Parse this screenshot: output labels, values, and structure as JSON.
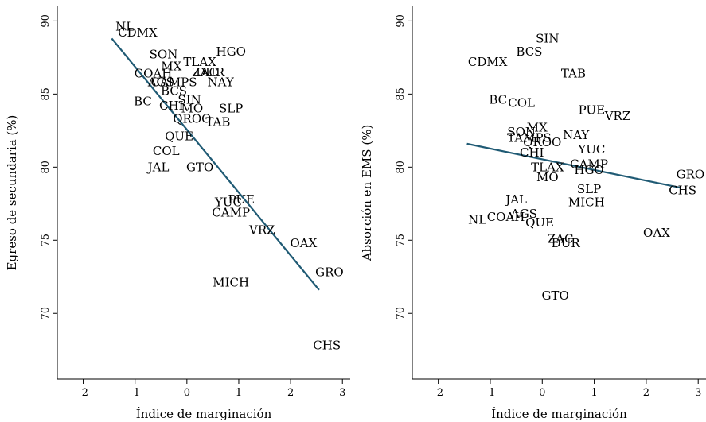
{
  "colors": {
    "fit_line": "#1f5a74",
    "text": "#000000",
    "axis": "#000000"
  },
  "chart_data": [
    {
      "type": "scatter",
      "xlabel": "Índice de marginación",
      "ylabel": "Egreso de secundaria (%)",
      "xlim": [
        -2.5,
        3.15
      ],
      "ylim": [
        65.5,
        91.0
      ],
      "xticks": [
        -2,
        -1,
        0,
        1,
        2,
        3
      ],
      "yticks": [
        70,
        75,
        80,
        85,
        90
      ],
      "fit": {
        "x": [
          -1.45,
          2.55
        ],
        "y": [
          88.8,
          71.6
        ]
      },
      "points": [
        {
          "label": "NL",
          "x": -1.2,
          "y": 89.6
        },
        {
          "label": "CDMX",
          "x": -0.95,
          "y": 89.2
        },
        {
          "label": "SON",
          "x": -0.45,
          "y": 87.7
        },
        {
          "label": "HGO",
          "x": 0.85,
          "y": 87.9
        },
        {
          "label": "MX",
          "x": -0.3,
          "y": 86.9
        },
        {
          "label": "TLAX",
          "x": 0.25,
          "y": 87.2
        },
        {
          "label": "ZAC",
          "x": 0.35,
          "y": 86.5
        },
        {
          "label": "DUR",
          "x": 0.45,
          "y": 86.5
        },
        {
          "label": "COAH",
          "x": -0.65,
          "y": 86.4
        },
        {
          "label": "NAY",
          "x": 0.65,
          "y": 85.8
        },
        {
          "label": "AGS",
          "x": -0.5,
          "y": 85.8
        },
        {
          "label": "CAMPS",
          "x": -0.25,
          "y": 85.8
        },
        {
          "label": "BCS",
          "x": -0.25,
          "y": 85.2
        },
        {
          "label": "SIN",
          "x": 0.05,
          "y": 84.6
        },
        {
          "label": "BC",
          "x": -0.85,
          "y": 84.5
        },
        {
          "label": "CHI",
          "x": -0.3,
          "y": 84.2
        },
        {
          "label": "MO",
          "x": 0.1,
          "y": 84.0
        },
        {
          "label": "SLP",
          "x": 0.85,
          "y": 84.0
        },
        {
          "label": "QROO",
          "x": 0.1,
          "y": 83.3
        },
        {
          "label": "TAB",
          "x": 0.6,
          "y": 83.1
        },
        {
          "label": "QUE",
          "x": -0.15,
          "y": 82.1
        },
        {
          "label": "COL",
          "x": -0.4,
          "y": 81.1
        },
        {
          "label": "JAL",
          "x": -0.55,
          "y": 80.0
        },
        {
          "label": "GTO",
          "x": 0.25,
          "y": 80.0
        },
        {
          "label": "PUE",
          "x": 1.05,
          "y": 77.8
        },
        {
          "label": "YUC",
          "x": 0.8,
          "y": 77.6
        },
        {
          "label": "CAMP",
          "x": 0.85,
          "y": 76.9
        },
        {
          "label": "VRZ",
          "x": 1.45,
          "y": 75.7
        },
        {
          "label": "OAX",
          "x": 2.25,
          "y": 74.8
        },
        {
          "label": "GRO",
          "x": 2.75,
          "y": 72.8
        },
        {
          "label": "MICH",
          "x": 0.85,
          "y": 72.1
        },
        {
          "label": "CHS",
          "x": 2.7,
          "y": 67.8
        }
      ]
    },
    {
      "type": "scatter",
      "xlabel": "Índice de marginación",
      "ylabel": "Absorción en EMS (%)",
      "xlim": [
        -2.5,
        3.15
      ],
      "ylim": [
        65.5,
        91.0
      ],
      "xticks": [
        -2,
        -1,
        0,
        1,
        2,
        3
      ],
      "yticks": [
        70,
        75,
        80,
        85,
        90
      ],
      "fit": {
        "x": [
          -1.45,
          2.65
        ],
        "y": [
          81.6,
          78.6
        ]
      },
      "points": [
        {
          "label": "SIN",
          "x": 0.1,
          "y": 88.8
        },
        {
          "label": "BCS",
          "x": -0.25,
          "y": 87.9
        },
        {
          "label": "CDMX",
          "x": -1.05,
          "y": 87.2
        },
        {
          "label": "TAB",
          "x": 0.6,
          "y": 86.4
        },
        {
          "label": "BC",
          "x": -0.85,
          "y": 84.6
        },
        {
          "label": "COL",
          "x": -0.4,
          "y": 84.4
        },
        {
          "label": "PUE",
          "x": 0.95,
          "y": 83.9
        },
        {
          "label": "VRZ",
          "x": 1.45,
          "y": 83.5
        },
        {
          "label": "SON",
          "x": -0.4,
          "y": 82.4
        },
        {
          "label": "MX",
          "x": -0.1,
          "y": 82.7
        },
        {
          "label": "NAY",
          "x": 0.65,
          "y": 82.2
        },
        {
          "label": "TAMPS",
          "x": -0.25,
          "y": 82.0
        },
        {
          "label": "QROO",
          "x": 0.0,
          "y": 81.7
        },
        {
          "label": "YUC",
          "x": 0.95,
          "y": 81.2
        },
        {
          "label": "CHI",
          "x": -0.2,
          "y": 81.0
        },
        {
          "label": "CAMP",
          "x": 0.9,
          "y": 80.2
        },
        {
          "label": "TLAX",
          "x": 0.1,
          "y": 80.0
        },
        {
          "label": "HGO",
          "x": 0.9,
          "y": 79.8
        },
        {
          "label": "GRO",
          "x": 2.85,
          "y": 79.5
        },
        {
          "label": "MO",
          "x": 0.1,
          "y": 79.3
        },
        {
          "label": "SLP",
          "x": 0.9,
          "y": 78.5
        },
        {
          "label": "CHS",
          "x": 2.7,
          "y": 78.4
        },
        {
          "label": "JAL",
          "x": -0.5,
          "y": 77.8
        },
        {
          "label": "MICH",
          "x": 0.85,
          "y": 77.6
        },
        {
          "label": "AGS",
          "x": -0.35,
          "y": 76.8
        },
        {
          "label": "COAH",
          "x": -0.7,
          "y": 76.6
        },
        {
          "label": "NL",
          "x": -1.25,
          "y": 76.4
        },
        {
          "label": "QUE",
          "x": -0.05,
          "y": 76.2
        },
        {
          "label": "OAX",
          "x": 2.2,
          "y": 75.5
        },
        {
          "label": "ZAC",
          "x": 0.35,
          "y": 75.1
        },
        {
          "label": "DUR",
          "x": 0.45,
          "y": 74.8
        },
        {
          "label": "GTO",
          "x": 0.25,
          "y": 71.2
        }
      ]
    }
  ]
}
